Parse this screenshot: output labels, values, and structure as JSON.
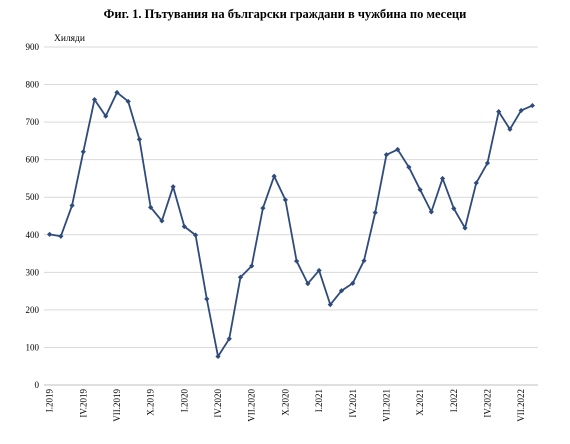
{
  "page": {
    "title": "Фиг. 1. Пътувания на български граждани в чужбина по месеци"
  },
  "chart_data": {
    "type": "line",
    "title": "Фиг. 1. Пътувания на български граждани в чужбина по месеци",
    "ylabel": "Хиляди",
    "xlabel": "",
    "ylim": [
      0,
      900
    ],
    "yticks": [
      0,
      100,
      200,
      300,
      400,
      500,
      600,
      700,
      800,
      900
    ],
    "grid": true,
    "line_color": "#2f4b7c",
    "x": [
      "I.2019",
      "II.2019",
      "III.2019",
      "IV.2019",
      "V.2019",
      "VI.2019",
      "VII.2019",
      "VIII.2019",
      "IX.2019",
      "X.2019",
      "XI.2019",
      "XII.2019",
      "I.2020",
      "II.2020",
      "III.2020",
      "IV.2020",
      "V.2020",
      "VI.2020",
      "VII.2020",
      "VIII.2020",
      "IX.2020",
      "X.2020",
      "XI.2020",
      "XII.2020",
      "I.2021",
      "II.2021",
      "III.2021",
      "IV.2021",
      "V.2021",
      "VI.2021",
      "VII.2021",
      "VIII.2021",
      "IX.2021",
      "X.2021",
      "XI.2021",
      "XII.2021",
      "I.2022",
      "II.2022",
      "III.2022",
      "IV.2022",
      "V.2022",
      "VI.2022",
      "VII.2022",
      "VIII.2022"
    ],
    "tick_labels": [
      "I.2019",
      "IV.2019",
      "VII.2019",
      "X.2019",
      "I.2020",
      "IV.2020",
      "VII.2020",
      "X.2020",
      "I.2021",
      "IV.2021",
      "VII.2021",
      "X.2021",
      "I.2022",
      "IV.2022",
      "VII.2022"
    ],
    "series": [
      {
        "values": [
          401,
          396,
          478,
          621,
          760,
          716,
          779,
          755,
          654,
          473,
          437,
          528,
          422,
          399,
          229,
          76,
          123,
          287,
          317,
          471,
          556,
          493,
          330,
          270,
          305,
          214,
          251,
          271,
          331,
          459,
          613,
          627,
          580,
          520,
          461,
          550,
          470,
          418,
          538,
          591,
          728,
          681,
          731,
          744
        ]
      }
    ]
  }
}
